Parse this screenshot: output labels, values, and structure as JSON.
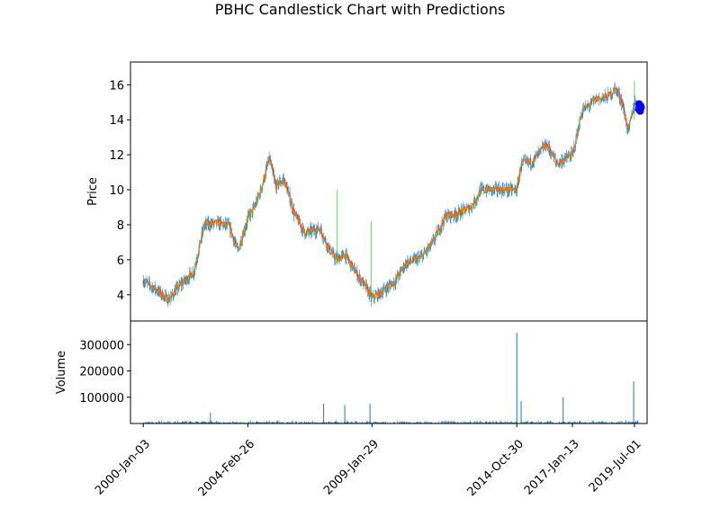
{
  "chart_data": {
    "type": "candlestick",
    "title": "PBHC Candlestick Chart with Predictions",
    "price_panel": {
      "ylabel": "Price",
      "ylim": [
        2.5,
        17.3
      ],
      "yticks": [
        4,
        6,
        8,
        10,
        12,
        14,
        16
      ],
      "series": [
        {
          "kind": "ohlc-close-path",
          "points": [
            [
              "2000-01-03",
              4.8
            ],
            [
              "2000-07-01",
              4.3
            ],
            [
              "2001-01-01",
              3.7
            ],
            [
              "2001-07-01",
              4.6
            ],
            [
              "2002-01-01",
              5.3
            ],
            [
              "2002-06-01",
              8.0
            ],
            [
              "2003-01-01",
              8.1
            ],
            [
              "2003-06-01",
              7.9
            ],
            [
              "2003-10-01",
              6.5
            ],
            [
              "2004-02-26",
              8.4
            ],
            [
              "2004-06-01",
              9.0
            ],
            [
              "2004-09-01",
              10.0
            ],
            [
              "2005-01-01",
              11.8
            ],
            [
              "2005-04-01",
              10.2
            ],
            [
              "2005-08-01",
              10.6
            ],
            [
              "2006-01-01",
              8.6
            ],
            [
              "2006-06-01",
              7.5
            ],
            [
              "2007-01-01",
              7.8
            ],
            [
              "2007-06-01",
              6.5
            ],
            [
              "2007-09-01",
              6.0
            ],
            [
              "2008-01-01",
              6.3
            ],
            [
              "2008-06-01",
              5.3
            ],
            [
              "2008-10-01",
              4.6
            ],
            [
              "2009-01-29",
              3.8
            ],
            [
              "2009-06-01",
              4.1
            ],
            [
              "2010-01-01",
              4.8
            ],
            [
              "2010-06-01",
              5.8
            ],
            [
              "2011-01-01",
              6.1
            ],
            [
              "2011-06-01",
              6.8
            ],
            [
              "2012-01-01",
              8.5
            ],
            [
              "2012-06-01",
              8.6
            ],
            [
              "2013-01-01",
              9.0
            ],
            [
              "2013-06-01",
              10.0
            ],
            [
              "2014-01-01",
              10.0
            ],
            [
              "2014-10-30",
              10.0
            ],
            [
              "2015-01-01",
              11.5
            ],
            [
              "2015-06-01",
              11.6
            ],
            [
              "2016-01-01",
              12.6
            ],
            [
              "2016-06-01",
              11.5
            ],
            [
              "2017-01-13",
              12.0
            ],
            [
              "2017-06-01",
              14.5
            ],
            [
              "2018-01-01",
              15.2
            ],
            [
              "2018-06-01",
              15.3
            ],
            [
              "2018-10-01",
              15.8
            ],
            [
              "2019-01-01",
              15.0
            ],
            [
              "2019-04-01",
              13.3
            ],
            [
              "2019-07-01",
              15.0
            ],
            [
              "2019-09-01",
              14.7
            ]
          ]
        },
        {
          "kind": "prediction-markers",
          "name": "",
          "color": "#0000ff",
          "points": [
            [
              "2019-09-01",
              14.6
            ],
            [
              "2019-09-08",
              14.9
            ],
            [
              "2019-09-15",
              14.7
            ],
            [
              "2019-09-22",
              14.5
            ],
            [
              "2019-09-29",
              14.8
            ],
            [
              "2019-10-06",
              14.7
            ]
          ]
        }
      ],
      "colors": {
        "up": "#2ca02c",
        "down": "#d62728",
        "close": "#ff7f0e",
        "wick": "#1f77b4"
      }
    },
    "volume_panel": {
      "ylabel": "Volume",
      "ylim": [
        0,
        390000
      ],
      "yticks": [
        100000,
        200000,
        300000
      ],
      "yticklabels": [
        "100000",
        "200000",
        "300000"
      ],
      "bar_color": "#1f77b4",
      "spikes": [
        [
          "2002-09-01",
          42000
        ],
        [
          "2007-03-01",
          75000
        ],
        [
          "2008-01-01",
          70000
        ],
        [
          "2009-01-01",
          75000
        ],
        [
          "2014-10-30",
          345000
        ],
        [
          "2015-01-01",
          85000
        ],
        [
          "2016-09-01",
          100000
        ],
        [
          "2019-06-20",
          160000
        ]
      ]
    },
    "x_axis": {
      "range": [
        "1999-07-01",
        "2020-01-01"
      ],
      "ticks": [
        "2000-Jan-03",
        "2004-Feb-26",
        "2009-Jan-29",
        "2014-Oct-30",
        "2017-Jan-13",
        "2019-Jul-01"
      ]
    }
  }
}
